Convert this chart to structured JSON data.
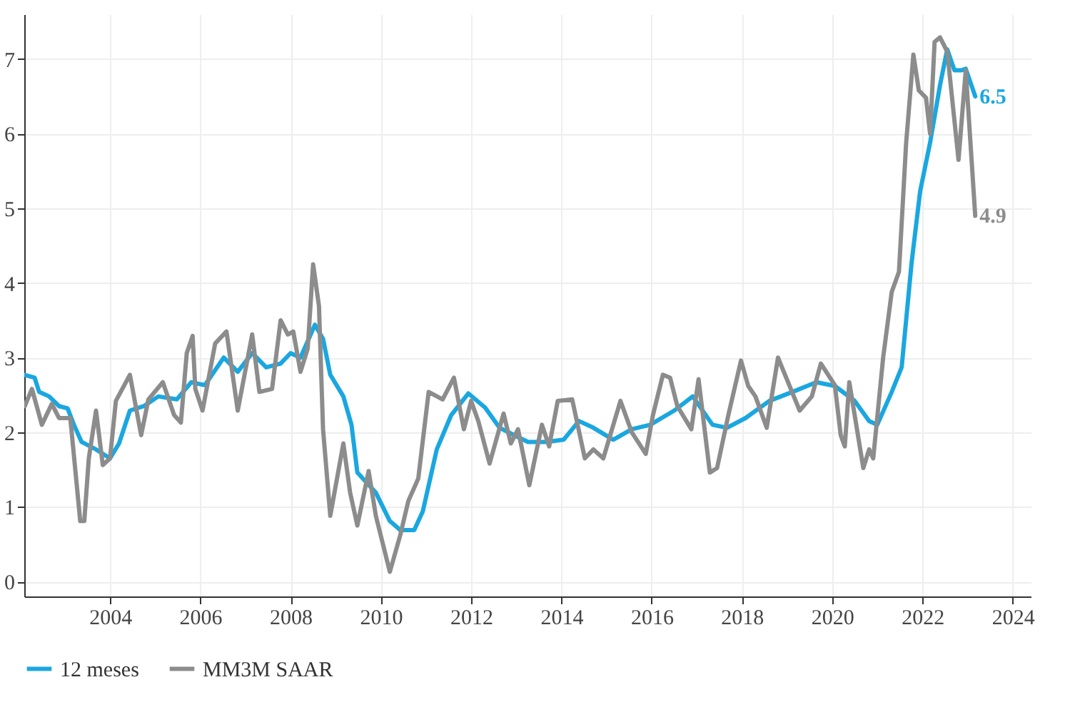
{
  "chart_data": {
    "type": "line",
    "xlim": [
      2002.1,
      2024.4
    ],
    "xticks": [
      2004,
      2006,
      2008,
      2010,
      2012,
      2014,
      2016,
      2018,
      2020,
      2022,
      2024
    ],
    "ylim": [
      -0.2,
      7.6
    ],
    "yticks": [
      0,
      1,
      2,
      3,
      4,
      5,
      6,
      7
    ],
    "grid": true,
    "legend": "bottom",
    "line_style": "solid",
    "marker": "none",
    "series": [
      {
        "name": "12 meses",
        "color": "#1aa7e0",
        "x": [
          2002.1,
          2002.33,
          2002.43,
          2002.65,
          2002.87,
          2003.06,
          2003.2,
          2003.37,
          2003.69,
          2004.0,
          2004.2,
          2004.44,
          2004.75,
          2005.07,
          2005.48,
          2005.8,
          2006.1,
          2006.52,
          2006.83,
          2007.15,
          2007.46,
          2007.78,
          2008.0,
          2008.22,
          2008.54,
          2008.72,
          2008.88,
          2009.17,
          2009.35,
          2009.48,
          2009.89,
          2010.2,
          2010.43,
          2010.74,
          2010.93,
          2011.24,
          2011.56,
          2011.94,
          2012.31,
          2012.63,
          2013.26,
          2013.67,
          2014.05,
          2014.39,
          2014.71,
          2015.15,
          2015.56,
          2015.97,
          2016.5,
          2016.91,
          2017.35,
          2017.67,
          2018.08,
          2018.61,
          2019.12,
          2019.65,
          2020.06,
          2020.5,
          2020.82,
          2021.0,
          2021.32,
          2021.54,
          2021.76,
          2021.95,
          2022.17,
          2022.39,
          2022.55,
          2022.71,
          2022.87,
          2022.96,
          2023.17
        ],
        "values": [
          2.77,
          2.73,
          2.54,
          2.48,
          2.35,
          2.32,
          2.1,
          1.87,
          1.77,
          1.65,
          1.85,
          2.29,
          2.35,
          2.48,
          2.44,
          2.67,
          2.63,
          3.0,
          2.81,
          3.06,
          2.87,
          2.92,
          3.06,
          3.0,
          3.44,
          3.25,
          2.77,
          2.48,
          2.1,
          1.46,
          1.19,
          0.81,
          0.69,
          0.69,
          0.94,
          1.77,
          2.23,
          2.52,
          2.33,
          2.06,
          1.87,
          1.87,
          1.9,
          2.15,
          2.06,
          1.9,
          2.04,
          2.1,
          2.29,
          2.48,
          2.1,
          2.06,
          2.19,
          2.42,
          2.54,
          2.67,
          2.62,
          2.42,
          2.15,
          2.1,
          2.54,
          2.87,
          4.27,
          5.23,
          5.88,
          6.65,
          7.13,
          6.85,
          6.85,
          6.87,
          6.5
        ],
        "value_labels": [
          null,
          null,
          null,
          null,
          null,
          null,
          null,
          null,
          null,
          null,
          null,
          null,
          null,
          null,
          null,
          null,
          null,
          null,
          null,
          null,
          null,
          null,
          null,
          null,
          null,
          null,
          null,
          null,
          null,
          null,
          null,
          null,
          null,
          null,
          null,
          null,
          null,
          null,
          null,
          null,
          null,
          null,
          null,
          null,
          null,
          null,
          null,
          null,
          null,
          null,
          null,
          null,
          null,
          null,
          null,
          null,
          null,
          null,
          null,
          null,
          null,
          null,
          null,
          null,
          null,
          null,
          null,
          null,
          null,
          null,
          "6.5"
        ]
      },
      {
        "name": "MM3M SAAR",
        "color": "#8c8c8c",
        "x": [
          2002.11,
          2002.27,
          2002.49,
          2002.71,
          2002.87,
          2003.12,
          2003.34,
          2003.43,
          2003.53,
          2003.69,
          2003.84,
          2004.0,
          2004.13,
          2004.44,
          2004.69,
          2004.85,
          2005.17,
          2005.42,
          2005.57,
          2005.7,
          2005.83,
          2005.89,
          2006.05,
          2006.33,
          2006.58,
          2006.83,
          2007.15,
          2007.31,
          2007.59,
          2007.78,
          2007.94,
          2008.06,
          2008.22,
          2008.38,
          2008.5,
          2008.63,
          2008.72,
          2008.88,
          2009.17,
          2009.32,
          2009.48,
          2009.73,
          2009.89,
          2010.2,
          2010.43,
          2010.61,
          2010.83,
          2011.06,
          2011.37,
          2011.62,
          2011.84,
          2012.0,
          2012.16,
          2012.41,
          2012.72,
          2012.88,
          2013.04,
          2013.29,
          2013.57,
          2013.73,
          2013.92,
          2014.24,
          2014.52,
          2014.71,
          2014.93,
          2015.31,
          2015.56,
          2015.87,
          2016.03,
          2016.25,
          2016.41,
          2016.57,
          2016.88,
          2017.04,
          2017.29,
          2017.45,
          2017.7,
          2017.98,
          2018.14,
          2018.3,
          2018.55,
          2018.8,
          2019.28,
          2019.55,
          2019.75,
          2020.06,
          2020.19,
          2020.28,
          2020.38,
          2020.69,
          2020.82,
          2020.91,
          2021.13,
          2021.32,
          2021.48,
          2021.64,
          2021.8,
          2021.92,
          2022.08,
          2022.17,
          2022.27,
          2022.39,
          2022.55,
          2022.8,
          2022.96,
          2023.17
        ],
        "values": [
          2.35,
          2.58,
          2.1,
          2.38,
          2.19,
          2.19,
          0.81,
          0.81,
          1.65,
          2.29,
          1.56,
          1.65,
          2.42,
          2.77,
          1.96,
          2.44,
          2.67,
          2.23,
          2.13,
          3.06,
          3.29,
          2.58,
          2.29,
          3.19,
          3.35,
          2.29,
          3.31,
          2.54,
          2.58,
          3.5,
          3.31,
          3.35,
          2.81,
          3.12,
          4.25,
          3.69,
          2.04,
          0.88,
          1.85,
          1.19,
          0.75,
          1.48,
          0.88,
          0.13,
          0.62,
          1.08,
          1.38,
          2.54,
          2.44,
          2.73,
          2.04,
          2.42,
          2.15,
          1.58,
          2.25,
          1.85,
          2.04,
          1.29,
          2.1,
          1.81,
          2.42,
          2.44,
          1.65,
          1.77,
          1.65,
          2.42,
          2.0,
          1.71,
          2.23,
          2.77,
          2.73,
          2.35,
          2.04,
          2.71,
          1.46,
          1.52,
          2.23,
          2.96,
          2.62,
          2.48,
          2.06,
          3.0,
          2.29,
          2.48,
          2.92,
          2.63,
          1.96,
          1.81,
          2.67,
          1.52,
          1.77,
          1.65,
          3.0,
          3.88,
          4.15,
          5.88,
          7.06,
          6.58,
          6.48,
          6.0,
          7.23,
          7.29,
          7.1,
          5.65,
          6.85,
          4.9
        ],
        "value_labels": [
          null,
          null,
          null,
          null,
          null,
          null,
          null,
          null,
          null,
          null,
          null,
          null,
          null,
          null,
          null,
          null,
          null,
          null,
          null,
          null,
          null,
          null,
          null,
          null,
          null,
          null,
          null,
          null,
          null,
          null,
          null,
          null,
          null,
          null,
          null,
          null,
          null,
          null,
          null,
          null,
          null,
          null,
          null,
          null,
          null,
          null,
          null,
          null,
          null,
          null,
          null,
          null,
          null,
          null,
          null,
          null,
          null,
          null,
          null,
          null,
          null,
          null,
          null,
          null,
          null,
          null,
          null,
          null,
          null,
          null,
          null,
          null,
          null,
          null,
          null,
          null,
          null,
          null,
          null,
          null,
          null,
          null,
          null,
          null,
          null,
          null,
          null,
          null,
          null,
          null,
          null,
          null,
          null,
          null,
          null,
          null,
          null,
          null,
          null,
          null,
          null,
          null,
          null,
          null,
          null,
          "4.9"
        ]
      }
    ]
  }
}
